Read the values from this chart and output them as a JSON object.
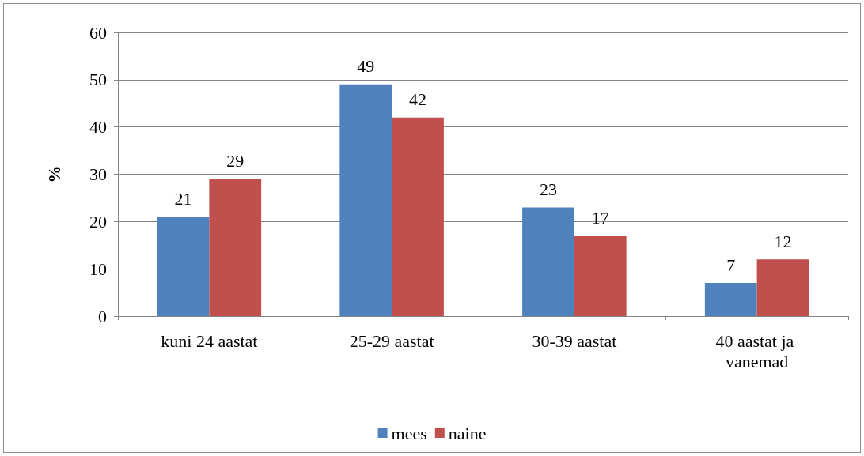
{
  "chart_data": {
    "type": "bar",
    "ylabel": "%",
    "categories": [
      "kuni 24 aastat",
      "25-29 aastat",
      "30-39 aastat",
      "40 aastat ja vanemad"
    ],
    "series": [
      {
        "name": "mees",
        "color": "#4f81bd",
        "values": [
          21,
          49,
          23,
          7
        ]
      },
      {
        "name": "naine",
        "color": "#c0504d",
        "values": [
          29,
          42,
          17,
          12
        ]
      }
    ],
    "ylim": [
      0,
      60
    ],
    "yticks": [
      0,
      10,
      20,
      30,
      40,
      50,
      60
    ],
    "grid": "y",
    "legend": "bottom",
    "data_labels": true
  }
}
